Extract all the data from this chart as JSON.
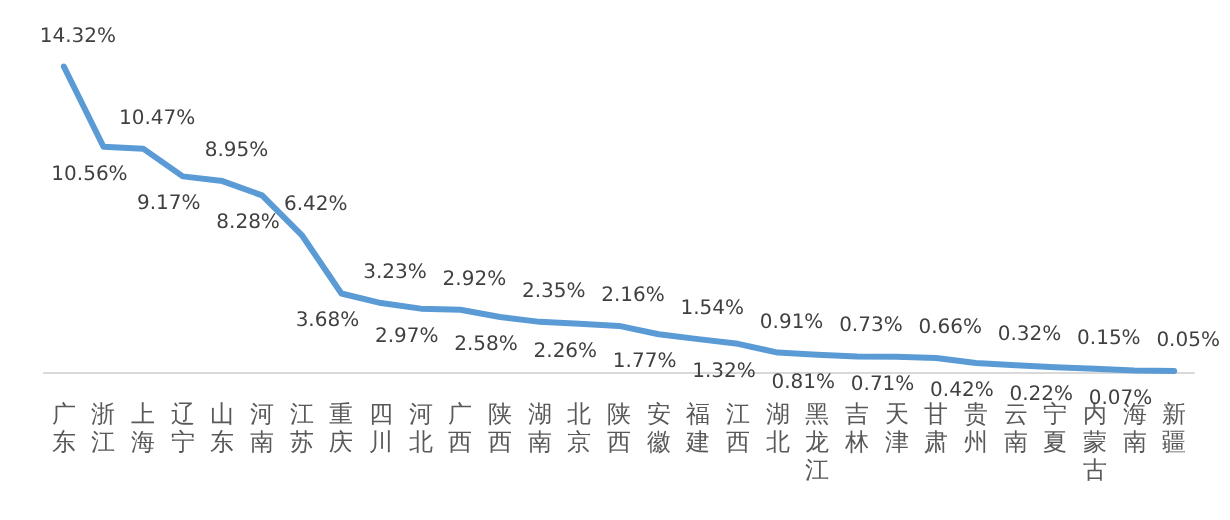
{
  "chart_data": {
    "type": "line",
    "categories": [
      "广东",
      "浙江",
      "上海",
      "辽宁",
      "山东",
      "河南",
      "江苏",
      "重庆",
      "四川",
      "河北",
      "广西",
      "陕西",
      "湖南",
      "北京",
      "陕西",
      "安徽",
      "福建",
      "江西",
      "湖北",
      "黑龙江",
      "吉林",
      "天津",
      "甘肃",
      "贵州",
      "云南",
      "宁夏",
      "内蒙古",
      "海南",
      "新疆"
    ],
    "series": [
      {
        "color": "#5b9bd5",
        "values": [
          14.32,
          10.56,
          10.47,
          9.17,
          8.95,
          8.28,
          6.42,
          3.68,
          3.23,
          2.97,
          2.92,
          2.58,
          2.35,
          2.26,
          2.16,
          1.77,
          1.54,
          1.32,
          0.91,
          0.81,
          0.73,
          0.71,
          0.66,
          0.42,
          0.32,
          0.22,
          0.15,
          0.07,
          0.05
        ],
        "value_labels": [
          "14.32%",
          "10.56%",
          "10.47%",
          "9.17%",
          "8.95%",
          "8.28%",
          "6.42%",
          "3.68%",
          "3.23%",
          "2.97%",
          "2.92%",
          "2.58%",
          "2.35%",
          "2.26%",
          "2.16%",
          "1.77%",
          "1.54%",
          "1.32%",
          "0.91%",
          "0.81%",
          "0.73%",
          "0.71%",
          "0.66%",
          "0.42%",
          "0.32%",
          "0.22%",
          "0.15%",
          "0.07%",
          "0.05%"
        ]
      }
    ],
    "grid": false,
    "marker": "none",
    "line_style": "solid",
    "tick_labels": "x"
  }
}
